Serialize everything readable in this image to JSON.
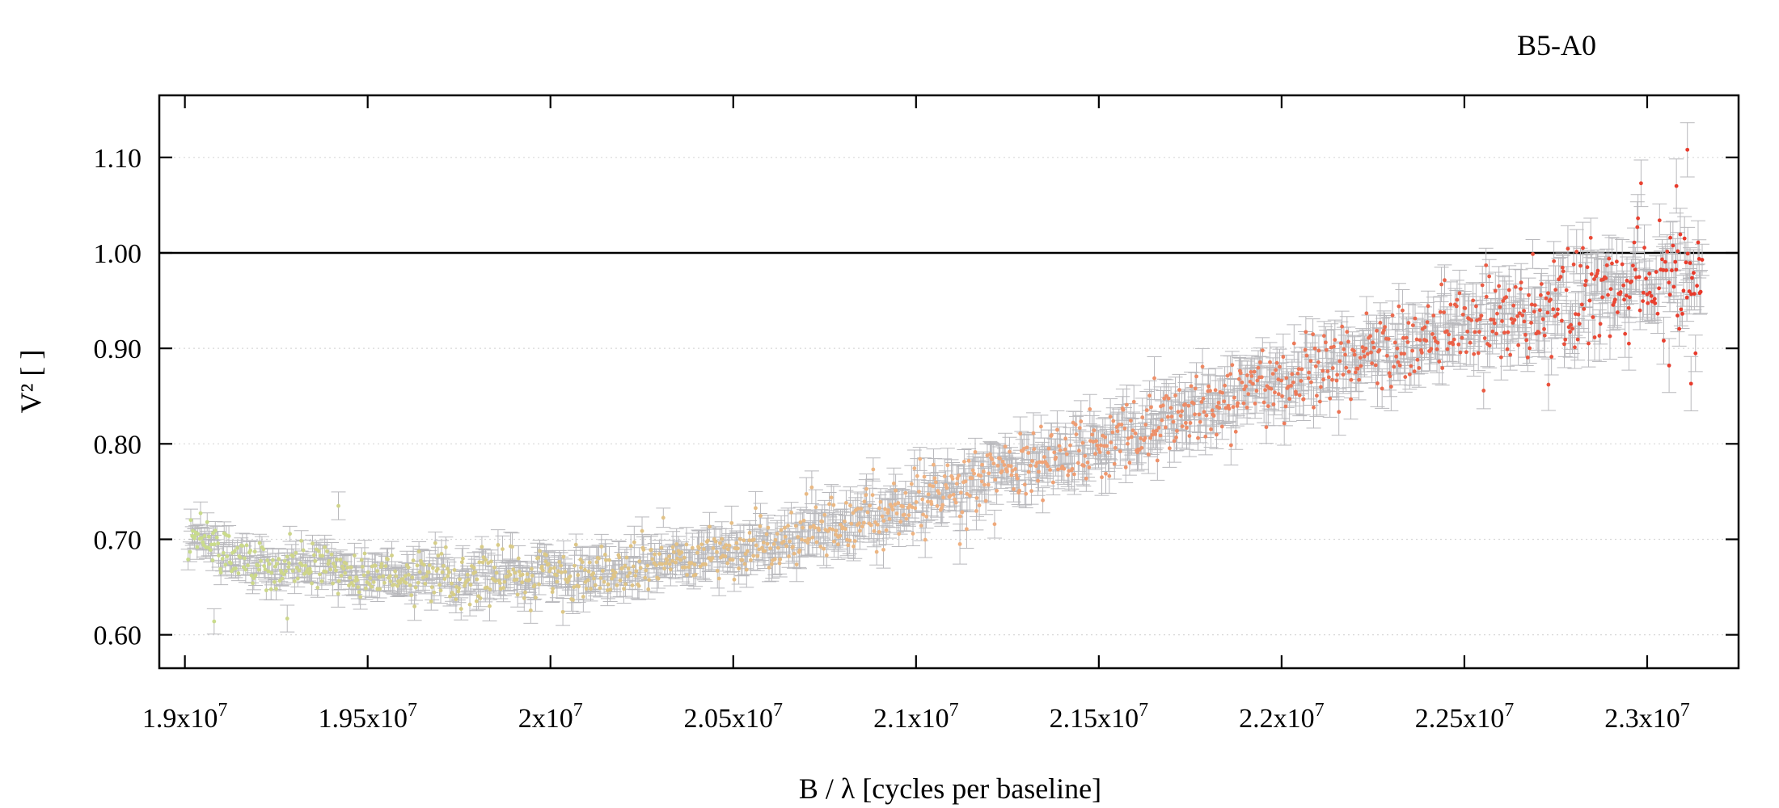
{
  "chart_data": {
    "type": "scatter",
    "title": "B5-A0",
    "xlabel": "B / λ [cycles per baseline]",
    "ylabel": "V² [ ]",
    "xlim": [
      18930000,
      23250000
    ],
    "ylim": [
      0.565,
      1.165
    ],
    "x_ticks": [
      19000000,
      19500000,
      20000000,
      20500000,
      21000000,
      21500000,
      22000000,
      22500000,
      23000000
    ],
    "x_tick_labels": [
      {
        "mant": "1.9x10",
        "exp": "7"
      },
      {
        "mant": "1.95x10",
        "exp": "7"
      },
      {
        "mant": "2x10",
        "exp": "7"
      },
      {
        "mant": "2.05x10",
        "exp": "7"
      },
      {
        "mant": "2.1x10",
        "exp": "7"
      },
      {
        "mant": "2.15x10",
        "exp": "7"
      },
      {
        "mant": "2.2x10",
        "exp": "7"
      },
      {
        "mant": "2.25x10",
        "exp": "7"
      },
      {
        "mant": "2.3x10",
        "exp": "7"
      }
    ],
    "y_ticks": [
      0.6,
      0.7,
      0.8,
      0.9,
      1.0,
      1.1
    ],
    "y_tick_labels": [
      "0.60",
      "0.70",
      "0.80",
      "0.90",
      "1.00",
      "1.10"
    ],
    "reference_line_y": 1.0,
    "grid": "horizontal dotted at y ticks",
    "errorbar_color": "#b8b8bc",
    "color_scale": [
      "#c8dc8c",
      "#f0b282",
      "#e8382a"
    ],
    "series": [
      {
        "trend_points": [
          [
            19020000,
            0.712
          ],
          [
            19050000,
            0.705
          ],
          [
            19100000,
            0.69
          ],
          [
            19150000,
            0.683
          ],
          [
            19200000,
            0.676
          ],
          [
            19300000,
            0.67
          ],
          [
            19400000,
            0.667
          ],
          [
            19500000,
            0.664
          ],
          [
            19600000,
            0.662
          ],
          [
            19700000,
            0.661
          ],
          [
            19800000,
            0.661
          ],
          [
            19900000,
            0.662
          ],
          [
            20000000,
            0.664
          ],
          [
            20100000,
            0.666
          ],
          [
            20200000,
            0.67
          ],
          [
            20300000,
            0.674
          ],
          [
            20400000,
            0.68
          ],
          [
            20500000,
            0.688
          ],
          [
            20600000,
            0.696
          ],
          [
            20700000,
            0.705
          ],
          [
            20800000,
            0.716
          ],
          [
            20900000,
            0.728
          ],
          [
            21000000,
            0.74
          ],
          [
            21100000,
            0.752
          ],
          [
            21200000,
            0.764
          ],
          [
            21300000,
            0.776
          ],
          [
            21400000,
            0.789
          ],
          [
            21500000,
            0.801
          ],
          [
            21600000,
            0.814
          ],
          [
            21700000,
            0.828
          ],
          [
            21800000,
            0.842
          ],
          [
            21900000,
            0.856
          ],
          [
            22000000,
            0.868
          ],
          [
            22100000,
            0.88
          ],
          [
            22200000,
            0.891
          ],
          [
            22300000,
            0.902
          ],
          [
            22400000,
            0.912
          ],
          [
            22500000,
            0.921
          ],
          [
            22600000,
            0.93
          ],
          [
            22700000,
            0.939
          ],
          [
            22800000,
            0.947
          ],
          [
            22900000,
            0.955
          ],
          [
            23000000,
            0.962
          ],
          [
            23080000,
            0.968
          ],
          [
            23130000,
            0.972
          ]
        ],
        "n_points": 1400,
        "x_range": [
          19010000,
          23150000
        ],
        "scatter_sd": [
          0.012,
          0.03
        ],
        "errorbar_sd": [
          0.01,
          0.022
        ],
        "notable_points": [
          [
            19080000,
            0.614
          ],
          [
            19280000,
            0.617
          ],
          [
            19420000,
            0.735
          ],
          [
            21120000,
            0.695
          ],
          [
            22730000,
            0.862
          ],
          [
            22950000,
            0.905
          ],
          [
            23060000,
            0.882
          ],
          [
            23080000,
            1.07
          ],
          [
            23110000,
            1.108
          ],
          [
            23120000,
            0.863
          ]
        ]
      }
    ]
  }
}
